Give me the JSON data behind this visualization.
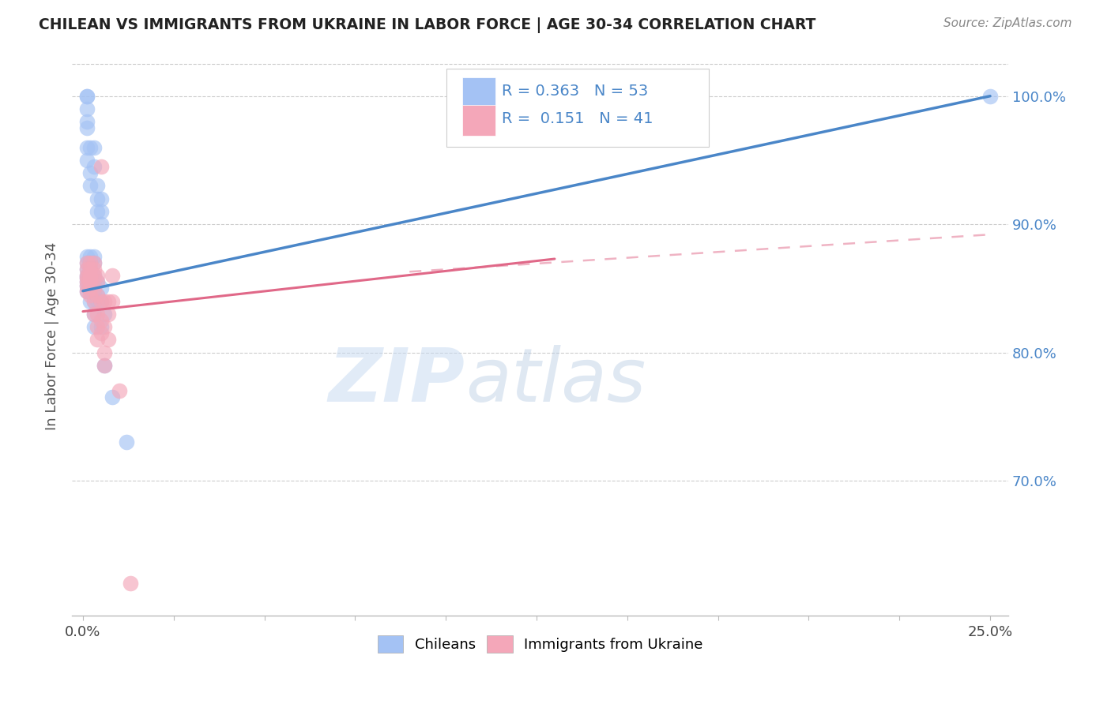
{
  "title": "CHILEAN VS IMMIGRANTS FROM UKRAINE IN LABOR FORCE | AGE 30-34 CORRELATION CHART",
  "source": "Source: ZipAtlas.com",
  "ylabel": "In Labor Force | Age 30-34",
  "watermark_zip": "ZIP",
  "watermark_atlas": "atlas",
  "blue_color": "#a4c2f4",
  "pink_color": "#f4a7b9",
  "line_blue": "#4a86c8",
  "line_pink": "#e06888",
  "blue_scatter": [
    [
      0.001,
      1.0
    ],
    [
      0.001,
      1.0
    ],
    [
      0.001,
      0.99
    ],
    [
      0.001,
      0.98
    ],
    [
      0.001,
      0.975
    ],
    [
      0.001,
      0.96
    ],
    [
      0.001,
      0.95
    ],
    [
      0.002,
      0.96
    ],
    [
      0.002,
      0.94
    ],
    [
      0.002,
      0.93
    ],
    [
      0.003,
      0.96
    ],
    [
      0.003,
      0.945
    ],
    [
      0.004,
      0.93
    ],
    [
      0.004,
      0.92
    ],
    [
      0.004,
      0.91
    ],
    [
      0.005,
      0.92
    ],
    [
      0.005,
      0.91
    ],
    [
      0.005,
      0.9
    ],
    [
      0.001,
      0.875
    ],
    [
      0.001,
      0.87
    ],
    [
      0.001,
      0.865
    ],
    [
      0.001,
      0.86
    ],
    [
      0.001,
      0.858
    ],
    [
      0.001,
      0.855
    ],
    [
      0.001,
      0.852
    ],
    [
      0.001,
      0.848
    ],
    [
      0.002,
      0.875
    ],
    [
      0.002,
      0.87
    ],
    [
      0.002,
      0.865
    ],
    [
      0.002,
      0.858
    ],
    [
      0.002,
      0.855
    ],
    [
      0.002,
      0.852
    ],
    [
      0.002,
      0.848
    ],
    [
      0.002,
      0.84
    ],
    [
      0.003,
      0.875
    ],
    [
      0.003,
      0.87
    ],
    [
      0.003,
      0.86
    ],
    [
      0.003,
      0.855
    ],
    [
      0.003,
      0.848
    ],
    [
      0.003,
      0.84
    ],
    [
      0.003,
      0.83
    ],
    [
      0.003,
      0.82
    ],
    [
      0.004,
      0.855
    ],
    [
      0.004,
      0.845
    ],
    [
      0.004,
      0.84
    ],
    [
      0.005,
      0.85
    ],
    [
      0.005,
      0.84
    ],
    [
      0.005,
      0.82
    ],
    [
      0.006,
      0.83
    ],
    [
      0.006,
      0.79
    ],
    [
      0.008,
      0.765
    ],
    [
      0.012,
      0.73
    ],
    [
      0.25,
      1.0
    ]
  ],
  "pink_scatter": [
    [
      0.001,
      0.87
    ],
    [
      0.001,
      0.865
    ],
    [
      0.001,
      0.86
    ],
    [
      0.001,
      0.858
    ],
    [
      0.001,
      0.855
    ],
    [
      0.001,
      0.852
    ],
    [
      0.001,
      0.848
    ],
    [
      0.002,
      0.87
    ],
    [
      0.002,
      0.865
    ],
    [
      0.002,
      0.86
    ],
    [
      0.002,
      0.858
    ],
    [
      0.002,
      0.855
    ],
    [
      0.002,
      0.85
    ],
    [
      0.002,
      0.845
    ],
    [
      0.003,
      0.87
    ],
    [
      0.003,
      0.865
    ],
    [
      0.003,
      0.86
    ],
    [
      0.003,
      0.85
    ],
    [
      0.003,
      0.84
    ],
    [
      0.003,
      0.83
    ],
    [
      0.004,
      0.86
    ],
    [
      0.004,
      0.855
    ],
    [
      0.004,
      0.845
    ],
    [
      0.004,
      0.83
    ],
    [
      0.004,
      0.82
    ],
    [
      0.004,
      0.81
    ],
    [
      0.005,
      0.945
    ],
    [
      0.005,
      0.84
    ],
    [
      0.005,
      0.825
    ],
    [
      0.005,
      0.815
    ],
    [
      0.006,
      0.84
    ],
    [
      0.006,
      0.82
    ],
    [
      0.006,
      0.8
    ],
    [
      0.006,
      0.79
    ],
    [
      0.007,
      0.84
    ],
    [
      0.007,
      0.83
    ],
    [
      0.007,
      0.81
    ],
    [
      0.008,
      0.86
    ],
    [
      0.008,
      0.84
    ],
    [
      0.01,
      0.77
    ],
    [
      0.013,
      0.62
    ]
  ],
  "xlim": [
    -0.003,
    0.255
  ],
  "ylim": [
    0.595,
    1.03
  ],
  "ytick_vals": [
    0.7,
    0.8,
    0.9,
    1.0
  ],
  "ytick_labels": [
    "70.0%",
    "80.0%",
    "90.0%",
    "100.0%"
  ],
  "xtick_vals": [
    0.0,
    0.025,
    0.05,
    0.075,
    0.1,
    0.125,
    0.15,
    0.175,
    0.2,
    0.225,
    0.25
  ],
  "blue_line": [
    [
      0.0,
      0.848
    ],
    [
      0.25,
      1.0
    ]
  ],
  "pink_line_solid": [
    [
      0.0,
      0.832
    ],
    [
      0.13,
      0.873
    ]
  ],
  "pink_line_dash": [
    [
      0.09,
      0.863
    ],
    [
      0.25,
      0.892
    ]
  ]
}
